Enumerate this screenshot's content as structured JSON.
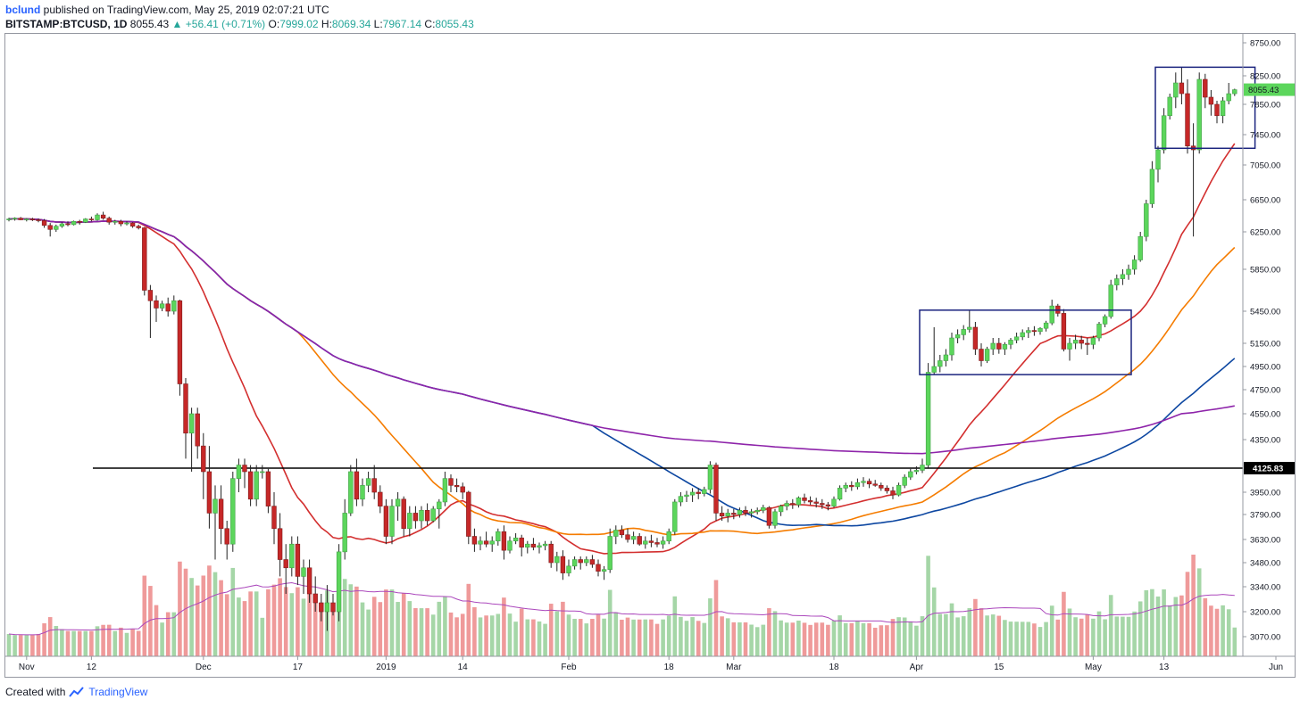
{
  "header": {
    "author": "bclund",
    "published_text": "published on TradingView.com, May 25, 2019 02:07:21 UTC",
    "symbol": "BITSTAMP:BTCUSD, 1D",
    "last": "8055.43",
    "change": "+56.41 (+0.71%)",
    "o_label": "O:",
    "o": "7999.02",
    "h_label": "H:",
    "h": "8069.34",
    "l_label": "L:",
    "l": "7967.14",
    "c_label": "C:",
    "c": "8055.43"
  },
  "footer": {
    "created_with": "Created with",
    "brand": "TradingView"
  },
  "colors": {
    "up": "#43a047",
    "up_fill": "#5cd65c",
    "down": "#c62828",
    "vol_up": "#a5d6a7",
    "vol_down": "#ef9a9a",
    "ma_red": "#d32f2f",
    "ma_orange": "#f57c00",
    "ma_blue": "#0d47a1",
    "ma_purple": "#8e24aa",
    "vol_ma": "#ab47bc",
    "box": "#1a237e",
    "price_tag": "#5cd65c"
  },
  "chart_data": {
    "type": "candlestick",
    "y_ticks": [
      "8750.00",
      "8250.00",
      "7850.00",
      "7450.00",
      "7050.00",
      "6650.00",
      "6250.00",
      "5850.00",
      "5450.00",
      "5150.00",
      "4950.00",
      "4750.00",
      "4550.00",
      "4350.00",
      "3950.00",
      "3790.00",
      "3630.00",
      "3480.00",
      "3340.00",
      "3200.00",
      "3070.00"
    ],
    "x_ticks": [
      "Nov",
      "12",
      "Dec",
      "17",
      "2019",
      "14",
      "Feb",
      "18",
      "Mar",
      "18",
      "Apr",
      "15",
      "May",
      "13",
      "Jun"
    ],
    "last_price_label": "8055.43",
    "support_level": 4125.83,
    "support_label": "4125.83",
    "highlight_boxes": [
      {
        "from_date": "2019-04-02",
        "to_date": "2019-05-07",
        "price_low": 4880,
        "price_high": 5460
      },
      {
        "from_date": "2019-05-12",
        "to_date": "2019-05-28",
        "price_low": 7270,
        "price_high": 8380
      }
    ],
    "candles": [
      [
        6400,
        6425,
        6380,
        6410
      ],
      [
        6410,
        6430,
        6390,
        6420
      ],
      [
        6420,
        6435,
        6395,
        6400
      ],
      [
        6400,
        6420,
        6380,
        6410
      ],
      [
        6410,
        6425,
        6385,
        6400
      ],
      [
        6400,
        6415,
        6370,
        6390
      ],
      [
        6390,
        6410,
        6300,
        6330
      ],
      [
        6330,
        6360,
        6200,
        6280
      ],
      [
        6280,
        6340,
        6250,
        6320
      ],
      [
        6320,
        6370,
        6300,
        6350
      ],
      [
        6350,
        6380,
        6320,
        6340
      ],
      [
        6340,
        6390,
        6330,
        6380
      ],
      [
        6380,
        6400,
        6340,
        6370
      ],
      [
        6370,
        6420,
        6360,
        6410
      ],
      [
        6410,
        6440,
        6380,
        6400
      ],
      [
        6400,
        6480,
        6390,
        6460
      ],
      [
        6460,
        6500,
        6400,
        6420
      ],
      [
        6420,
        6440,
        6340,
        6370
      ],
      [
        6370,
        6400,
        6340,
        6380
      ],
      [
        6380,
        6400,
        6320,
        6350
      ],
      [
        6350,
        6380,
        6330,
        6360
      ],
      [
        6360,
        6370,
        6300,
        6320
      ],
      [
        6320,
        6340,
        6280,
        6300
      ],
      [
        6300,
        6310,
        5600,
        5650
      ],
      [
        5650,
        5700,
        5200,
        5550
      ],
      [
        5550,
        5600,
        5350,
        5480
      ],
      [
        5480,
        5550,
        5450,
        5520
      ],
      [
        5520,
        5580,
        5400,
        5450
      ],
      [
        5450,
        5600,
        5420,
        5550
      ],
      [
        5550,
        5560,
        4700,
        4800
      ],
      [
        4800,
        4850,
        4200,
        4400
      ],
      [
        4400,
        4600,
        4100,
        4550
      ],
      [
        4550,
        4600,
        4200,
        4300
      ],
      [
        4300,
        4400,
        3900,
        4100
      ],
      [
        4100,
        4300,
        3700,
        3800
      ],
      [
        3800,
        4000,
        3500,
        3900
      ],
      [
        3900,
        4000,
        3600,
        3700
      ],
      [
        3700,
        3750,
        3500,
        3600
      ],
      [
        3600,
        4100,
        3550,
        4050
      ],
      [
        4050,
        4200,
        3950,
        4150
      ],
      [
        4150,
        4200,
        3980,
        4100
      ],
      [
        4100,
        4150,
        3850,
        3900
      ],
      [
        3900,
        4150,
        3850,
        4100
      ],
      [
        4100,
        4150,
        4050,
        4100
      ],
      [
        4100,
        4120,
        3800,
        3850
      ],
      [
        3850,
        3950,
        3600,
        3700
      ],
      [
        3700,
        3800,
        3400,
        3500
      ],
      [
        3500,
        3600,
        3300,
        3450
      ],
      [
        3450,
        3650,
        3400,
        3600
      ],
      [
        3600,
        3650,
        3350,
        3400
      ],
      [
        3400,
        3500,
        3300,
        3450
      ],
      [
        3450,
        3500,
        3250,
        3300
      ],
      [
        3300,
        3400,
        3200,
        3250
      ],
      [
        3250,
        3300,
        3150,
        3200
      ],
      [
        3200,
        3350,
        3100,
        3250
      ],
      [
        3250,
        3300,
        3180,
        3200
      ],
      [
        3200,
        3600,
        3150,
        3550
      ],
      [
        3550,
        3900,
        3500,
        3800
      ],
      [
        3800,
        4150,
        3780,
        4100
      ],
      [
        4100,
        4200,
        3850,
        3900
      ],
      [
        3900,
        4050,
        3850,
        4000
      ],
      [
        4000,
        4100,
        3950,
        4050
      ],
      [
        4050,
        4150,
        3900,
        3950
      ],
      [
        3950,
        4000,
        3800,
        3850
      ],
      [
        3850,
        3900,
        3600,
        3650
      ],
      [
        3650,
        3900,
        3600,
        3850
      ],
      [
        3850,
        3950,
        3750,
        3900
      ],
      [
        3900,
        3920,
        3650,
        3700
      ],
      [
        3700,
        3850,
        3650,
        3800
      ],
      [
        3800,
        3850,
        3700,
        3750
      ],
      [
        3750,
        3850,
        3700,
        3820
      ],
      [
        3820,
        3870,
        3720,
        3750
      ],
      [
        3750,
        3850,
        3740,
        3830
      ],
      [
        3830,
        3900,
        3700,
        3880
      ],
      [
        3880,
        4100,
        3850,
        4050
      ],
      [
        4050,
        4080,
        3950,
        4000
      ],
      [
        4000,
        4050,
        3950,
        3990
      ],
      [
        3990,
        4020,
        3900,
        3950
      ],
      [
        3950,
        3960,
        3600,
        3650
      ],
      [
        3650,
        3700,
        3550,
        3600
      ],
      [
        3600,
        3650,
        3560,
        3620
      ],
      [
        3620,
        3680,
        3580,
        3600
      ],
      [
        3600,
        3650,
        3550,
        3620
      ],
      [
        3620,
        3700,
        3590,
        3680
      ],
      [
        3680,
        3720,
        3500,
        3560
      ],
      [
        3560,
        3650,
        3540,
        3620
      ],
      [
        3620,
        3670,
        3600,
        3640
      ],
      [
        3640,
        3660,
        3520,
        3580
      ],
      [
        3580,
        3620,
        3540,
        3600
      ],
      [
        3600,
        3640,
        3560,
        3580
      ],
      [
        3580,
        3610,
        3540,
        3590
      ],
      [
        3590,
        3620,
        3560,
        3600
      ],
      [
        3600,
        3620,
        3450,
        3480
      ],
      [
        3480,
        3550,
        3430,
        3520
      ],
      [
        3520,
        3560,
        3380,
        3420
      ],
      [
        3420,
        3500,
        3400,
        3460
      ],
      [
        3460,
        3520,
        3440,
        3500
      ],
      [
        3500,
        3520,
        3440,
        3480
      ],
      [
        3480,
        3520,
        3460,
        3500
      ],
      [
        3500,
        3530,
        3450,
        3470
      ],
      [
        3470,
        3500,
        3400,
        3430
      ],
      [
        3430,
        3460,
        3380,
        3440
      ],
      [
        3440,
        3700,
        3420,
        3650
      ],
      [
        3650,
        3720,
        3600,
        3690
      ],
      [
        3690,
        3720,
        3640,
        3660
      ],
      [
        3660,
        3700,
        3610,
        3630
      ],
      [
        3630,
        3680,
        3600,
        3650
      ],
      [
        3650,
        3670,
        3590,
        3600
      ],
      [
        3600,
        3650,
        3570,
        3620
      ],
      [
        3620,
        3660,
        3580,
        3610
      ],
      [
        3610,
        3640,
        3580,
        3600
      ],
      [
        3600,
        3650,
        3570,
        3620
      ],
      [
        3620,
        3700,
        3600,
        3680
      ],
      [
        3680,
        3900,
        3660,
        3880
      ],
      [
        3880,
        3950,
        3850,
        3920
      ],
      [
        3920,
        3960,
        3880,
        3930
      ],
      [
        3930,
        3980,
        3880,
        3950
      ],
      [
        3950,
        3980,
        3900,
        3940
      ],
      [
        3940,
        3990,
        3920,
        3970
      ],
      [
        3970,
        4180,
        3940,
        4150
      ],
      [
        4150,
        4170,
        3750,
        3800
      ],
      [
        3800,
        3850,
        3750,
        3780
      ],
      [
        3780,
        3830,
        3740,
        3800
      ],
      [
        3800,
        3830,
        3760,
        3790
      ],
      [
        3790,
        3840,
        3770,
        3820
      ],
      [
        3820,
        3850,
        3780,
        3800
      ],
      [
        3800,
        3830,
        3770,
        3810
      ],
      [
        3810,
        3840,
        3790,
        3820
      ],
      [
        3820,
        3860,
        3800,
        3840
      ],
      [
        3840,
        3850,
        3700,
        3720
      ],
      [
        3720,
        3830,
        3700,
        3810
      ],
      [
        3810,
        3860,
        3780,
        3850
      ],
      [
        3850,
        3890,
        3820,
        3870
      ],
      [
        3870,
        3900,
        3830,
        3860
      ],
      [
        3860,
        3920,
        3840,
        3910
      ],
      [
        3910,
        3940,
        3870,
        3890
      ],
      [
        3890,
        3920,
        3860,
        3880
      ],
      [
        3880,
        3910,
        3840,
        3870
      ],
      [
        3870,
        3900,
        3830,
        3860
      ],
      [
        3860,
        3880,
        3820,
        3850
      ],
      [
        3850,
        3920,
        3840,
        3900
      ],
      [
        3900,
        4000,
        3890,
        3980
      ],
      [
        3980,
        4020,
        3950,
        4000
      ],
      [
        4000,
        4030,
        3960,
        3990
      ],
      [
        3990,
        4050,
        3970,
        4020
      ],
      [
        4020,
        4060,
        3990,
        4030
      ],
      [
        4030,
        4050,
        3980,
        4010
      ],
      [
        4010,
        4040,
        3990,
        4000
      ],
      [
        4000,
        4020,
        3960,
        3980
      ],
      [
        3980,
        4000,
        3940,
        3960
      ],
      [
        3960,
        3990,
        3900,
        3930
      ],
      [
        3930,
        4020,
        3920,
        4000
      ],
      [
        4000,
        4080,
        3980,
        4060
      ],
      [
        4060,
        4120,
        4040,
        4100
      ],
      [
        4100,
        4140,
        4080,
        4110
      ],
      [
        4110,
        4200,
        4090,
        4150
      ],
      [
        4150,
        4980,
        4130,
        4900
      ],
      [
        4900,
        5300,
        4880,
        4950
      ],
      [
        4950,
        5050,
        4900,
        5000
      ],
      [
        5000,
        5100,
        4950,
        5050
      ],
      [
        5050,
        5250,
        5000,
        5200
      ],
      [
        5200,
        5280,
        5150,
        5230
      ],
      [
        5230,
        5320,
        5180,
        5280
      ],
      [
        5280,
        5460,
        5250,
        5300
      ],
      [
        5300,
        5350,
        5050,
        5100
      ],
      [
        5100,
        5150,
        4950,
        5000
      ],
      [
        5000,
        5120,
        4980,
        5100
      ],
      [
        5100,
        5200,
        5050,
        5150
      ],
      [
        5150,
        5200,
        5060,
        5100
      ],
      [
        5100,
        5160,
        5050,
        5140
      ],
      [
        5140,
        5200,
        5100,
        5180
      ],
      [
        5180,
        5250,
        5150,
        5210
      ],
      [
        5210,
        5280,
        5180,
        5250
      ],
      [
        5250,
        5300,
        5200,
        5270
      ],
      [
        5270,
        5310,
        5220,
        5260
      ],
      [
        5260,
        5300,
        5230,
        5290
      ],
      [
        5290,
        5360,
        5260,
        5340
      ],
      [
        5340,
        5560,
        5320,
        5500
      ],
      [
        5500,
        5520,
        5400,
        5430
      ],
      [
        5430,
        5470,
        5080,
        5100
      ],
      [
        5100,
        5200,
        5000,
        5150
      ],
      [
        5150,
        5230,
        5100,
        5180
      ],
      [
        5180,
        5220,
        5100,
        5150
      ],
      [
        5150,
        5200,
        5050,
        5140
      ],
      [
        5140,
        5220,
        5100,
        5200
      ],
      [
        5200,
        5350,
        5170,
        5330
      ],
      [
        5330,
        5420,
        5300,
        5400
      ],
      [
        5400,
        5750,
        5380,
        5700
      ],
      [
        5700,
        5800,
        5650,
        5760
      ],
      [
        5760,
        5850,
        5700,
        5800
      ],
      [
        5800,
        5900,
        5750,
        5850
      ],
      [
        5850,
        6000,
        5800,
        5950
      ],
      [
        5950,
        6250,
        5930,
        6200
      ],
      [
        6200,
        6650,
        6150,
        6600
      ],
      [
        6600,
        7100,
        6550,
        7000
      ],
      [
        7000,
        7300,
        6850,
        7250
      ],
      [
        7250,
        7800,
        7200,
        7700
      ],
      [
        7700,
        8000,
        7650,
        7950
      ],
      [
        7950,
        8300,
        7800,
        8150
      ],
      [
        8150,
        8380,
        7850,
        8000
      ],
      [
        8000,
        8200,
        7200,
        7300
      ],
      [
        7300,
        7600,
        6200,
        7250
      ],
      [
        7250,
        8300,
        7200,
        8200
      ],
      [
        8200,
        8280,
        7800,
        7950
      ],
      [
        7950,
        8050,
        7700,
        7850
      ],
      [
        7850,
        7900,
        7600,
        7700
      ],
      [
        7700,
        7950,
        7600,
        7900
      ],
      [
        7900,
        8150,
        7850,
        7999
      ],
      [
        7999,
        8069,
        7967,
        8055
      ]
    ]
  }
}
